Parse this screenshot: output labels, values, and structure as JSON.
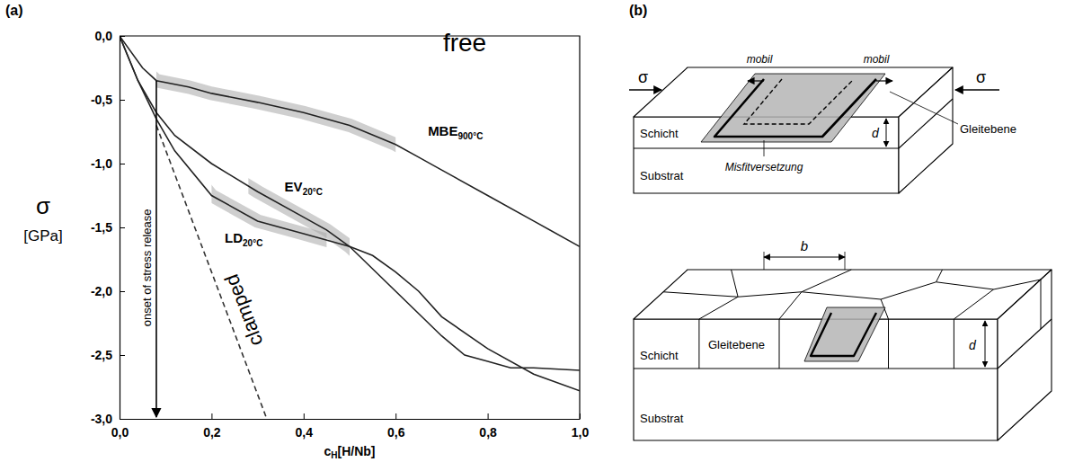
{
  "panel_labels": [
    "(a)",
    "(b)"
  ],
  "chart_data": {
    "type": "line",
    "x_label": "cH[H/Nb]",
    "y_label": [
      "σ",
      "[GPa]"
    ],
    "xlim": [
      0.0,
      1.0
    ],
    "xticks": [
      {
        "value": 0,
        "label": "0,0"
      },
      {
        "value": 0.2,
        "label": "0,2"
      },
      {
        "value": 0.4,
        "label": "0,4"
      },
      {
        "value": 0.6,
        "label": "0,6"
      },
      {
        "value": 0.8,
        "label": "0,8"
      },
      {
        "value": 1,
        "label": "1,0"
      }
    ],
    "ylim": [
      -3.0,
      0.0
    ],
    "yticks": [
      {
        "value": 0,
        "label": "0,0"
      },
      {
        "value": -0.5,
        "label": "-0,5"
      },
      {
        "value": -1,
        "label": "-1,0"
      },
      {
        "value": -1.5,
        "label": "-1,5"
      },
      {
        "value": -2,
        "label": "-2,0"
      },
      {
        "value": -2.5,
        "label": "-2,5"
      },
      {
        "value": -3,
        "label": "-3,0"
      }
    ],
    "series": [
      {
        "color": "#222222",
        "line_style": "solid",
        "x": [
          0,
          0.05,
          0.08,
          0.15,
          0.2,
          0.3,
          0.4,
          0.5,
          0.6,
          0.65,
          0.7,
          0.8,
          0.9,
          1.0
        ],
        "values": [
          0,
          -0.25,
          -0.35,
          -0.4,
          -0.45,
          -0.52,
          -0.6,
          -0.7,
          -0.85,
          -0.95,
          -1.05,
          -1.25,
          -1.45,
          -1.65
        ],
        "band": [
          0.08,
          0.6
        ]
      },
      {
        "color": "#222222",
        "line_style": "solid",
        "x": [
          0,
          0.04,
          0.08,
          0.12,
          0.2,
          0.3,
          0.4,
          0.45,
          0.5,
          0.6,
          0.7,
          0.75,
          0.8,
          0.85,
          0.9,
          1.0
        ],
        "values": [
          0,
          -0.35,
          -0.6,
          -0.78,
          -1.0,
          -1.22,
          -1.42,
          -1.52,
          -1.65,
          -2.0,
          -2.35,
          -2.5,
          -2.55,
          -2.6,
          -2.6,
          -2.62
        ],
        "band": [
          0.28,
          0.5
        ]
      },
      {
        "color": "#222222",
        "line_style": "solid",
        "x": [
          0,
          0.04,
          0.08,
          0.12,
          0.2,
          0.3,
          0.4,
          0.5,
          0.55,
          0.6,
          0.65,
          0.7,
          0.8,
          0.9,
          1.0
        ],
        "values": [
          0,
          -0.35,
          -0.65,
          -0.9,
          -1.25,
          -1.45,
          -1.55,
          -1.65,
          -1.72,
          -1.85,
          -2.0,
          -2.2,
          -2.45,
          -2.65,
          -2.78
        ],
        "band": [
          0.2,
          0.45
        ]
      },
      {
        "name": "clamped",
        "color": "#333333",
        "line_style": "dashed",
        "x": [
          0.08,
          0.32
        ],
        "values": [
          -0.7,
          -3.0
        ]
      }
    ],
    "annotations": [
      {
        "text": "free",
        "x": 0.75,
        "y": -0.12
      },
      {
        "text": "MBE900°C",
        "x": 0.73,
        "y": -0.78
      },
      {
        "text": "EV20°C",
        "x": 0.4,
        "y": -1.22
      },
      {
        "text": "LD20°C",
        "x": 0.27,
        "y": -1.62
      },
      {
        "text": "onset of stress release",
        "x": 0.08,
        "y": [
          -0.35,
          -3.0
        ]
      }
    ]
  },
  "diagram": {
    "top": {
      "stress": [
        "σ",
        "σ"
      ],
      "mobile": [
        "mobil",
        "mobil"
      ],
      "slip_plane": "Gleitebene",
      "layer": "Schicht",
      "substrate": "Substrat",
      "dislocation": "Misfitversetzung",
      "thickness": "d"
    },
    "bottom": {
      "grain_size": "b",
      "slip_plane": "Gleitebene",
      "layer": "Schicht",
      "substrate": "Substrat",
      "thickness": "d"
    }
  }
}
